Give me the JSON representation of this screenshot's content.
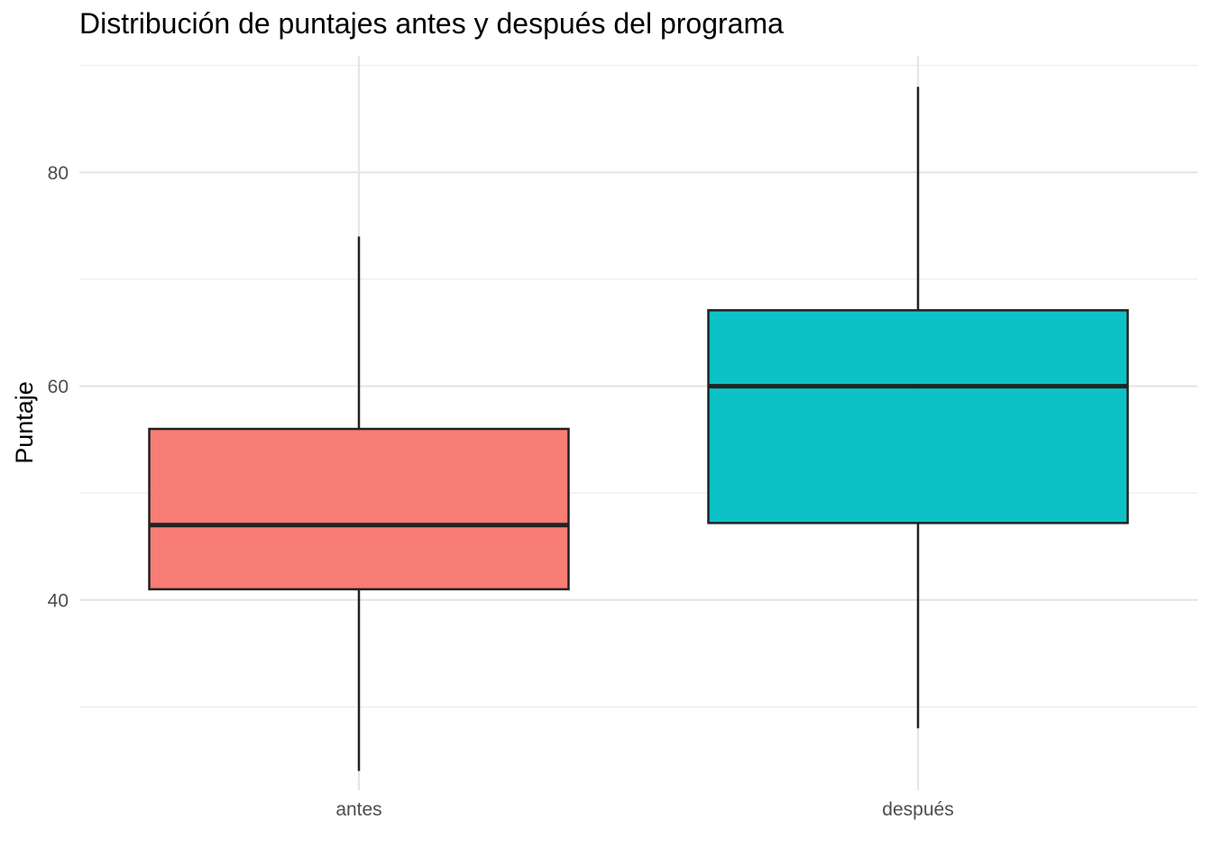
{
  "chart_data": {
    "type": "box",
    "title": "Distribución de puntajes antes y después del programa",
    "xlabel": "",
    "ylabel": "Puntaje",
    "categories": [
      "antes",
      "después"
    ],
    "boxes": [
      {
        "category": "antes",
        "min": 24,
        "q1": 41,
        "median": 47,
        "q3": 56,
        "max": 74,
        "color": "#F8766D"
      },
      {
        "category": "después",
        "min": 28,
        "q1": 47.2,
        "median": 60,
        "q3": 67.1,
        "max": 88,
        "color": "#00BFC4"
      }
    ],
    "y_ticks": [
      40,
      60,
      80
    ],
    "y_minor_ticks": [
      30,
      50,
      70,
      90
    ],
    "ylim": [
      22.2,
      90.9
    ],
    "grid": true,
    "legend": "none"
  }
}
